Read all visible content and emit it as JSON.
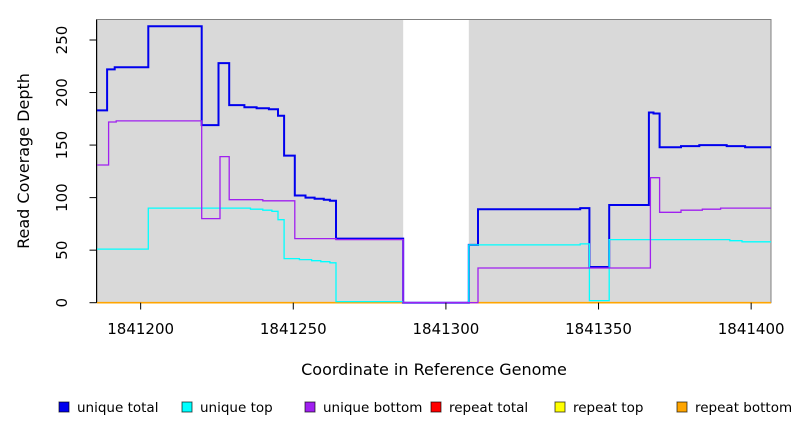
{
  "chart_data": {
    "type": "line",
    "subtype": "step",
    "title": "",
    "xlabel": "Coordinate in Reference Genome",
    "ylabel": "Read Coverage Depth",
    "x_range": [
      1841185.7,
      1841406.5
    ],
    "y_range": [
      0,
      269.5
    ],
    "x_ticks": [
      {
        "value": 1841200,
        "label": "1841200"
      },
      {
        "value": 1841250,
        "label": "1841250"
      },
      {
        "value": 1841300,
        "label": "1841300"
      },
      {
        "value": 1841350,
        "label": "1841350"
      },
      {
        "value": 1841400,
        "label": "1841400"
      }
    ],
    "y_ticks": [
      {
        "value": 0,
        "label": "0"
      },
      {
        "value": 50,
        "label": "50"
      },
      {
        "value": 100,
        "label": "100"
      },
      {
        "value": 150,
        "label": "150"
      },
      {
        "value": 200,
        "label": "200"
      },
      {
        "value": 250,
        "label": "250"
      }
    ],
    "grid": false,
    "panel_background": "#d9d9d9",
    "panel_border": "#808080",
    "no_data_region": [
      1841286,
      1841307.5
    ],
    "legend_position": "bottom",
    "series": [
      {
        "name": "repeat total",
        "color": "#ff0000",
        "width": 1.2,
        "segments": [
          [
            [
              1841185.7,
              0
            ],
            [
              1841286,
              0
            ]
          ],
          [
            [
              1841307.5,
              0
            ],
            [
              1841406.5,
              0
            ]
          ]
        ]
      },
      {
        "name": "repeat top",
        "color": "#ffff00",
        "width": 1.2,
        "segments": [
          [
            [
              1841185.7,
              0
            ],
            [
              1841286,
              0
            ]
          ],
          [
            [
              1841307.5,
              0
            ],
            [
              1841406.5,
              0
            ]
          ]
        ]
      },
      {
        "name": "repeat bottom",
        "color": "#ffa500",
        "width": 1.6,
        "segments": [
          [
            [
              1841185.7,
              0
            ],
            [
              1841286,
              0
            ]
          ],
          [
            [
              1841307.5,
              0
            ],
            [
              1841406.5,
              0
            ]
          ]
        ]
      },
      {
        "name": "unique total",
        "color": "#0000ee",
        "width": 2,
        "segments": [
          [
            [
              1841185.7,
              183
            ],
            [
              1841189,
              222
            ],
            [
              1841191.5,
              224
            ],
            [
              1841202.5,
              263
            ],
            [
              1841220,
              169
            ],
            [
              1841225.5,
              228
            ],
            [
              1841229,
              188
            ],
            [
              1841234,
              186
            ],
            [
              1841238,
              185
            ],
            [
              1841242,
              184
            ],
            [
              1841245,
              178
            ],
            [
              1841247,
              140
            ],
            [
              1841250.5,
              102
            ],
            [
              1841254,
              100
            ],
            [
              1841257,
              99
            ],
            [
              1841260,
              98
            ],
            [
              1841262,
              97
            ],
            [
              1841264,
              61
            ],
            [
              1841286,
              0
            ],
            [
              1841307.5,
              55
            ],
            [
              1841310.5,
              89
            ],
            [
              1841344,
              90
            ],
            [
              1841347,
              34
            ],
            [
              1841353.5,
              93
            ],
            [
              1841366.5,
              181
            ],
            [
              1841368,
              180
            ],
            [
              1841370,
              148
            ],
            [
              1841377,
              149
            ],
            [
              1841383,
              150
            ],
            [
              1841392,
              149
            ],
            [
              1841398,
              148
            ],
            [
              1841406.5,
              148
            ]
          ]
        ]
      },
      {
        "name": "unique top",
        "color": "#00ffff",
        "width": 1.3,
        "segments": [
          [
            [
              1841185.7,
              51
            ],
            [
              1841202.5,
              90
            ],
            [
              1841232,
              90
            ],
            [
              1841236,
              89
            ],
            [
              1841240,
              88
            ],
            [
              1841243,
              87
            ],
            [
              1841245,
              79
            ],
            [
              1841247,
              42
            ],
            [
              1841252,
              41
            ],
            [
              1841256,
              40
            ],
            [
              1841259,
              39
            ],
            [
              1841262,
              38
            ],
            [
              1841264,
              1
            ],
            [
              1841286,
              0
            ],
            [
              1841307.5,
              55
            ],
            [
              1841344,
              56
            ],
            [
              1841347,
              2
            ],
            [
              1841353.5,
              60
            ],
            [
              1841393,
              59
            ],
            [
              1841397,
              58
            ],
            [
              1841406.5,
              58
            ]
          ]
        ]
      },
      {
        "name": "unique bottom",
        "color": "#a020f0",
        "width": 1.3,
        "segments": [
          [
            [
              1841185.7,
              131
            ],
            [
              1841189.5,
              172
            ],
            [
              1841192,
              173
            ],
            [
              1841220,
              80
            ],
            [
              1841226,
              139
            ],
            [
              1841229,
              98
            ],
            [
              1841240,
              97
            ],
            [
              1841250.5,
              61
            ],
            [
              1841264,
              60
            ],
            [
              1841286,
              0
            ],
            [
              1841310.5,
              33
            ],
            [
              1841367,
              119
            ],
            [
              1841370,
              86
            ],
            [
              1841377,
              88
            ],
            [
              1841384,
              89
            ],
            [
              1841390,
              90
            ],
            [
              1841406.5,
              90
            ]
          ]
        ]
      }
    ],
    "legend": [
      {
        "label": "unique total",
        "color": "#0000ee"
      },
      {
        "label": "unique top",
        "color": "#00ffff"
      },
      {
        "label": "unique bottom",
        "color": "#a020f0"
      },
      {
        "label": "repeat total",
        "color": "#ff0000"
      },
      {
        "label": "repeat top",
        "color": "#ffff00"
      },
      {
        "label": "repeat bottom",
        "color": "#ffa500"
      }
    ]
  }
}
